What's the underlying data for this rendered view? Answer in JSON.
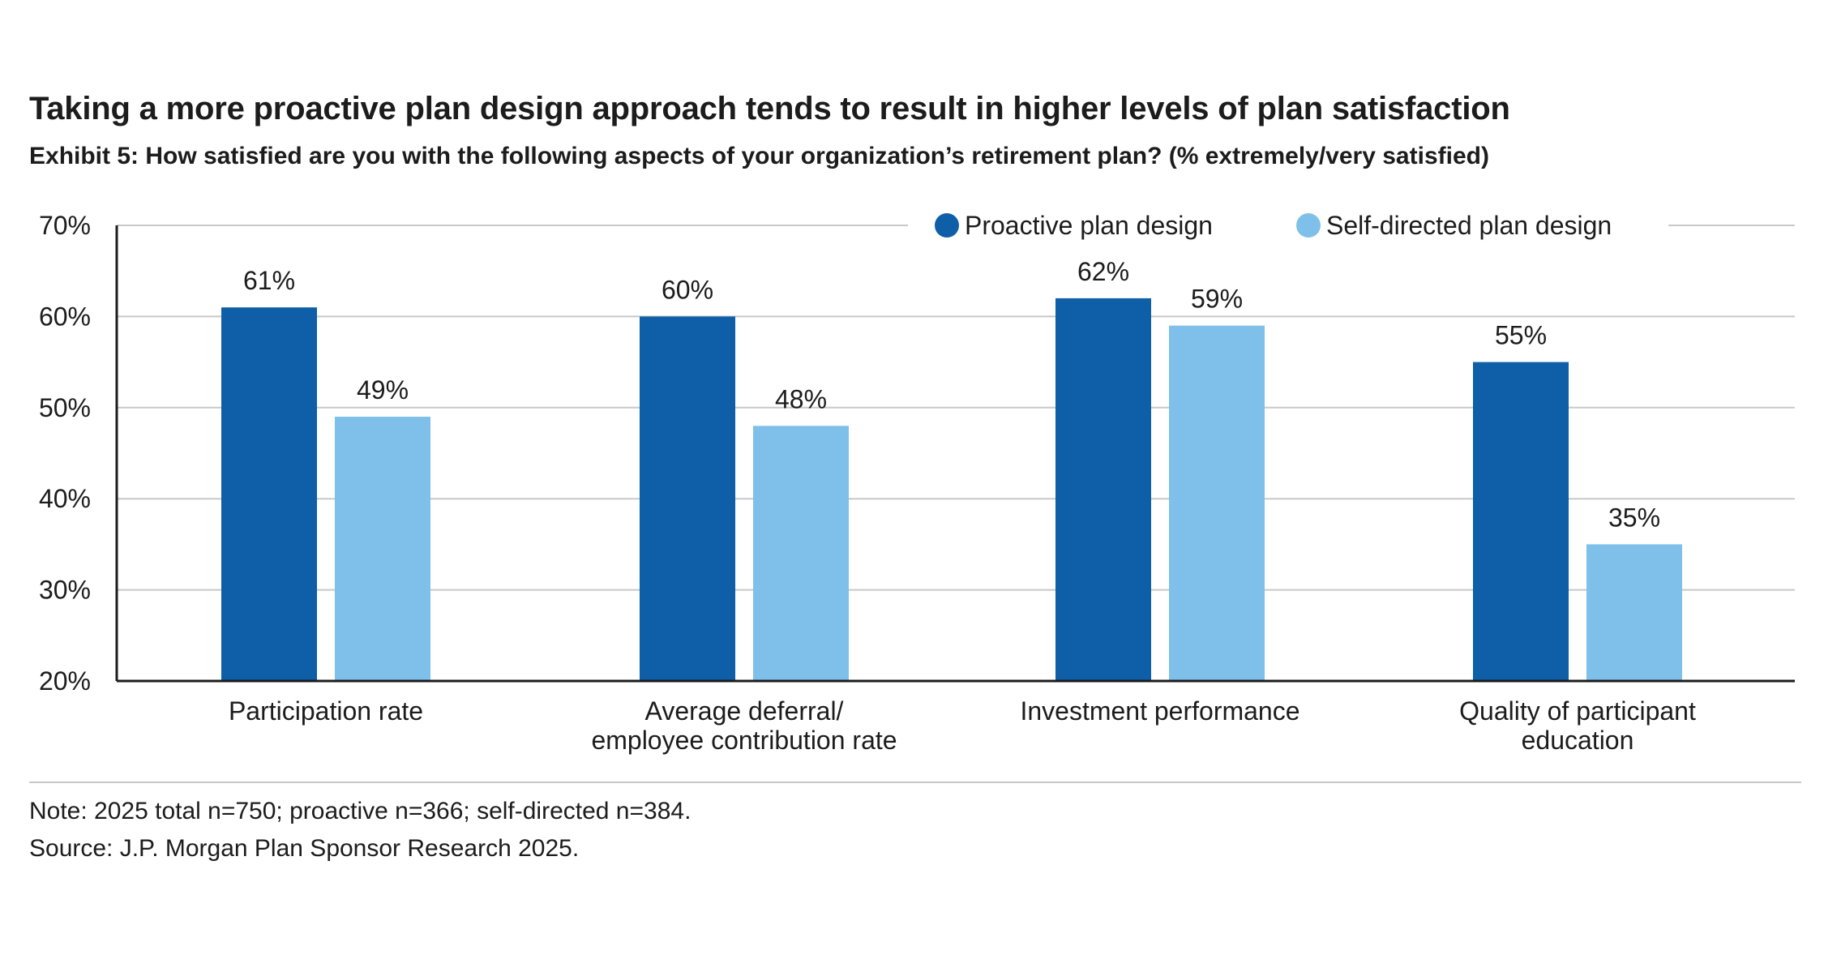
{
  "header": {
    "title": "Taking a more proactive plan design approach tends to result in higher levels of plan satisfaction",
    "subtitle": "Exhibit 5: How satisfied are you with the following aspects of your organization’s retirement plan? (% extremely/very satisfied)"
  },
  "chart_data": {
    "type": "bar",
    "categories": [
      [
        "Participation rate"
      ],
      [
        "Average deferral/",
        "employee contribution rate"
      ],
      [
        "Investment performance"
      ],
      [
        "Quality of participant",
        "education"
      ]
    ],
    "series": [
      {
        "name": "Proactive plan design",
        "color": "#0f5ea8",
        "values": [
          61,
          60,
          62,
          55
        ],
        "labels": [
          "61%",
          "60%",
          "62%",
          "55%"
        ]
      },
      {
        "name": "Self-directed plan design",
        "color": "#7fc0ea",
        "values": [
          49,
          48,
          59,
          35
        ],
        "labels": [
          "49%",
          "48%",
          "59%",
          "35%"
        ]
      }
    ],
    "ylim": [
      20,
      70
    ],
    "yticks": [
      20,
      30,
      40,
      50,
      60,
      70
    ],
    "ytick_labels": [
      "20%",
      "30%",
      "40%",
      "50%",
      "60%",
      "70%"
    ],
    "grid": true,
    "legend_position": "top-right"
  },
  "footer": {
    "note": "Note: 2025 total n=750; proactive n=366; self-directed n=384.",
    "source": "Source: J.P. Morgan Plan Sponsor Research 2025."
  }
}
